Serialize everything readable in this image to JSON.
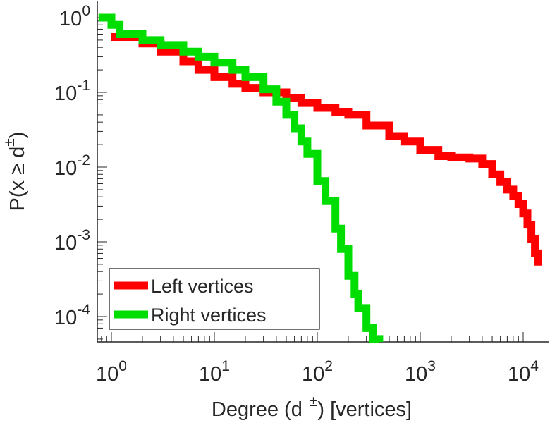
{
  "chart_data": {
    "type": "line",
    "xlabel_main": "Degree (d",
    "xlabel_sup": "±",
    "xlabel_tail": ") [vertices]",
    "ylabel_main": "P(x ≥ d",
    "ylabel_sup": "±",
    "ylabel_tail": ")",
    "xscale": "log",
    "yscale": "log",
    "xlim": [
      0.75,
      18000
    ],
    "ylim": [
      4e-05,
      1.2
    ],
    "grid": false,
    "legend_position": "bottom-left",
    "x_ticks": [
      {
        "base": "10",
        "exp": "0",
        "value": 1
      },
      {
        "base": "10",
        "exp": "1",
        "value": 10
      },
      {
        "base": "10",
        "exp": "2",
        "value": 100
      },
      {
        "base": "10",
        "exp": "3",
        "value": 1000
      },
      {
        "base": "10",
        "exp": "4",
        "value": 10000
      }
    ],
    "y_ticks": [
      {
        "base": "10",
        "exp": "0",
        "value": 1
      },
      {
        "base": "10",
        "exp": "-1",
        "value": 0.1
      },
      {
        "base": "10",
        "exp": "-2",
        "value": 0.01
      },
      {
        "base": "10",
        "exp": "-3",
        "value": 0.001
      },
      {
        "base": "10",
        "exp": "-4",
        "value": 0.0001
      }
    ],
    "series": [
      {
        "name": "Left vertices",
        "color": "#ff0000",
        "x": [
          1,
          2,
          3,
          5,
          7,
          10,
          15,
          20,
          30,
          50,
          70,
          100,
          150,
          200,
          300,
          500,
          700,
          1000,
          1500,
          2000,
          3000,
          4000,
          5000,
          6000,
          7000,
          8000,
          9000,
          10000,
          11000,
          12000,
          13000,
          14000
        ],
        "y": [
          0.55,
          0.45,
          0.35,
          0.26,
          0.2,
          0.16,
          0.13,
          0.115,
          0.1,
          0.085,
          0.072,
          0.062,
          0.055,
          0.05,
          0.036,
          0.026,
          0.022,
          0.017,
          0.014,
          0.0135,
          0.013,
          0.011,
          0.008,
          0.0063,
          0.005,
          0.0041,
          0.0032,
          0.0024,
          0.0017,
          0.0011,
          0.0007,
          0.00048
        ]
      },
      {
        "name": "Right vertices",
        "color": "#00dd00",
        "x": [
          0.75,
          1,
          1.2,
          2,
          3,
          5,
          7,
          10,
          15,
          20,
          30,
          40,
          50,
          60,
          70,
          80,
          100,
          120,
          150,
          170,
          200,
          230,
          250,
          300,
          350,
          400
        ],
        "y": [
          1.0,
          0.8,
          0.6,
          0.5,
          0.43,
          0.35,
          0.3,
          0.25,
          0.2,
          0.16,
          0.11,
          0.075,
          0.05,
          0.033,
          0.022,
          0.015,
          0.0065,
          0.0035,
          0.0015,
          0.0008,
          0.00035,
          0.0002,
          0.00013,
          7e-05,
          5e-05,
          4e-05
        ]
      }
    ]
  }
}
